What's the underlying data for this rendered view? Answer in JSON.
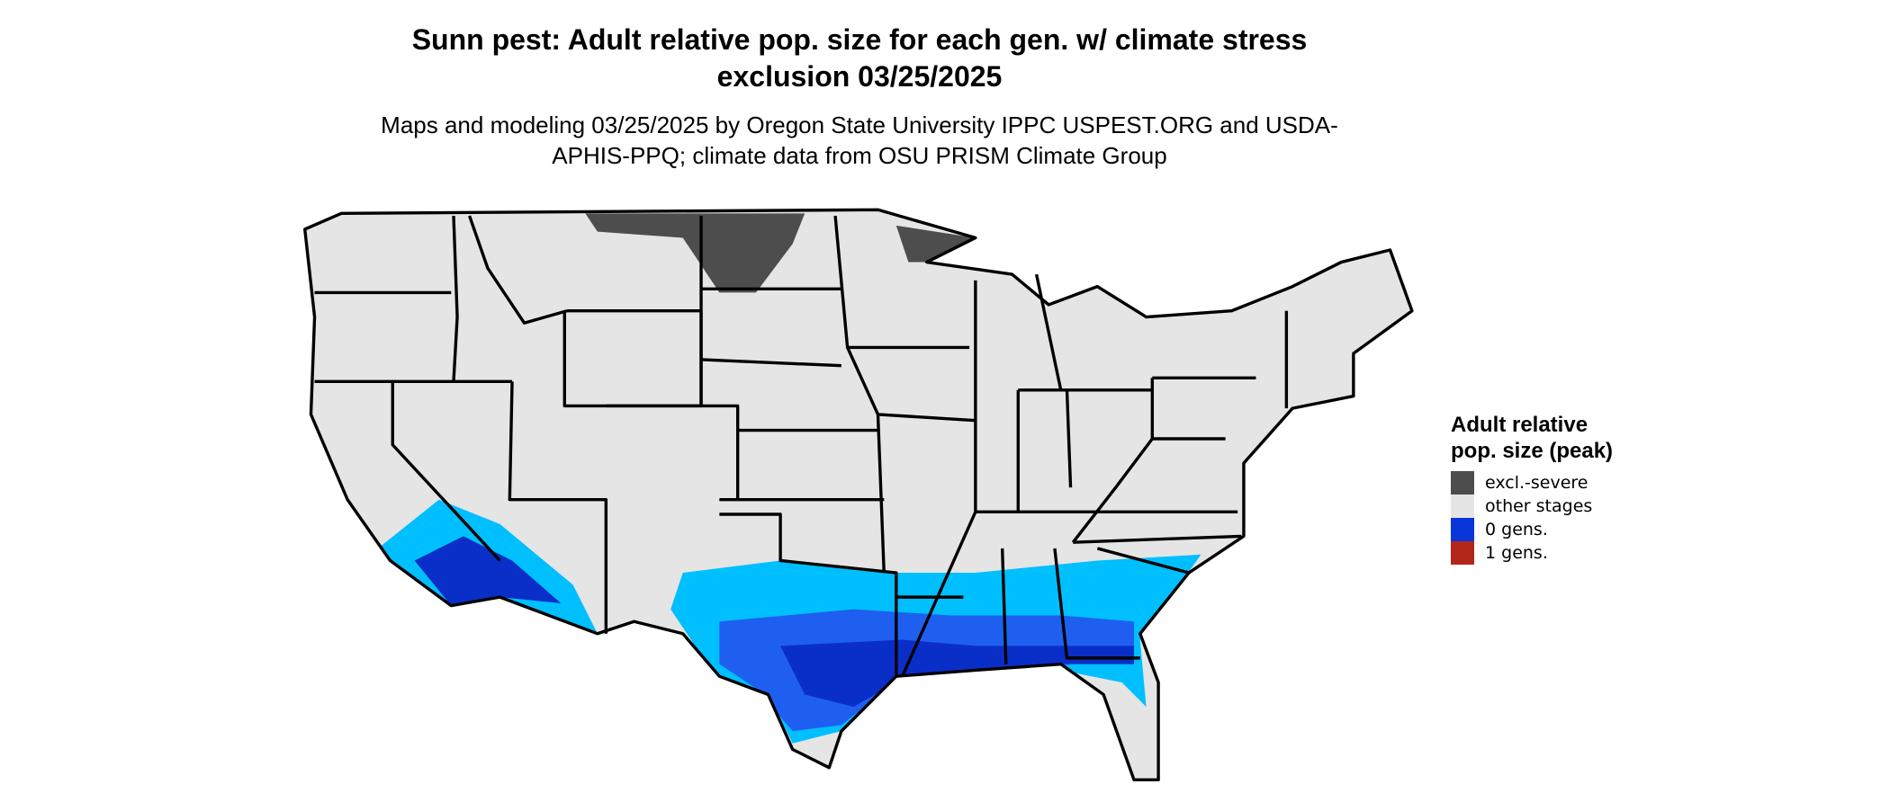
{
  "title": "Sunn pest: Adult relative pop. size for each gen. w/ climate stress exclusion 03/25/2025",
  "subtitle": "Maps and modeling 03/25/2025 by Oregon State University IPPC USPEST.ORG and USDA-APHIS-PPQ; climate data from OSU PRISM Climate Group",
  "legend": {
    "title": "Adult relative pop. size (peak)",
    "items": [
      {
        "label": "excl.-severe",
        "color": "#4d4d4d"
      },
      {
        "label": "other stages",
        "color": "#e5e5e5"
      },
      {
        "label": "0 gens.",
        "color": "#0a35d9"
      },
      {
        "label": "1 gens.",
        "color": "#b2261a"
      }
    ]
  }
}
